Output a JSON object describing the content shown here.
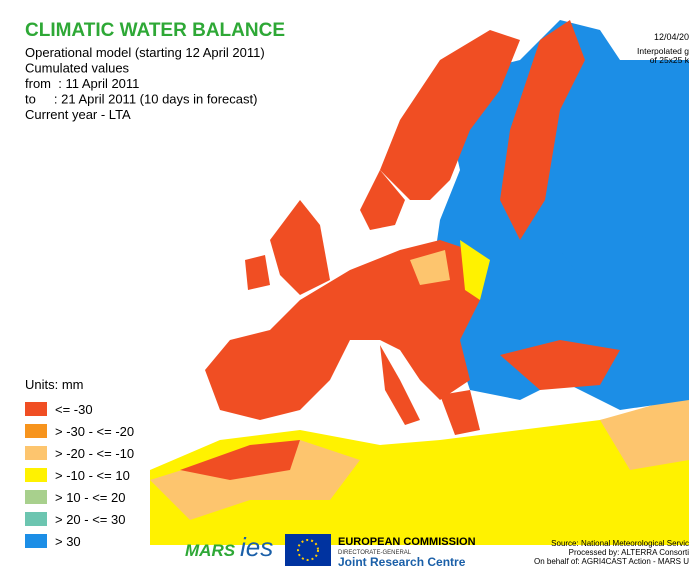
{
  "header": {
    "title": "CLIMATIC WATER BALANCE",
    "lines": [
      "Operational model (starting 12 April 2011)",
      "Cumulated values",
      "from  : 11 April 2011",
      "to     : 21 April 2011 (10 days in forecast)",
      "Current year - LTA"
    ]
  },
  "top_right": [
    "12/04/20",
    "Interpolated g",
    "of 25x25 k"
  ],
  "legend": {
    "title": "Units: mm",
    "items": [
      {
        "label": "<= -30",
        "color": "#f04e23"
      },
      {
        "label": "> -30 - <= -20",
        "color": "#f7941d"
      },
      {
        "label": "> -20 - <= -10",
        "color": "#fdc56e"
      },
      {
        "label": "> -10 - <= 10",
        "color": "#fff200"
      },
      {
        "label": "> 10 - <= 20",
        "color": "#a8d08d"
      },
      {
        "label": "> 20 - <= 30",
        "color": "#6cc5b0"
      },
      {
        "label": "> 30",
        "color": "#1c8ee6"
      }
    ]
  },
  "footer": {
    "mars": "MARS",
    "ies": "ies",
    "ec": "EUROPEAN COMMISSION",
    "dg": "DIRECTORATE-GENERAL",
    "jrc": "Joint Research Centre",
    "source": [
      "Source: National Meteorological Servic",
      "Processed by: ALTERRA Consorti",
      "On behalf of: AGRI4CAST Action - MARS U"
    ]
  }
}
